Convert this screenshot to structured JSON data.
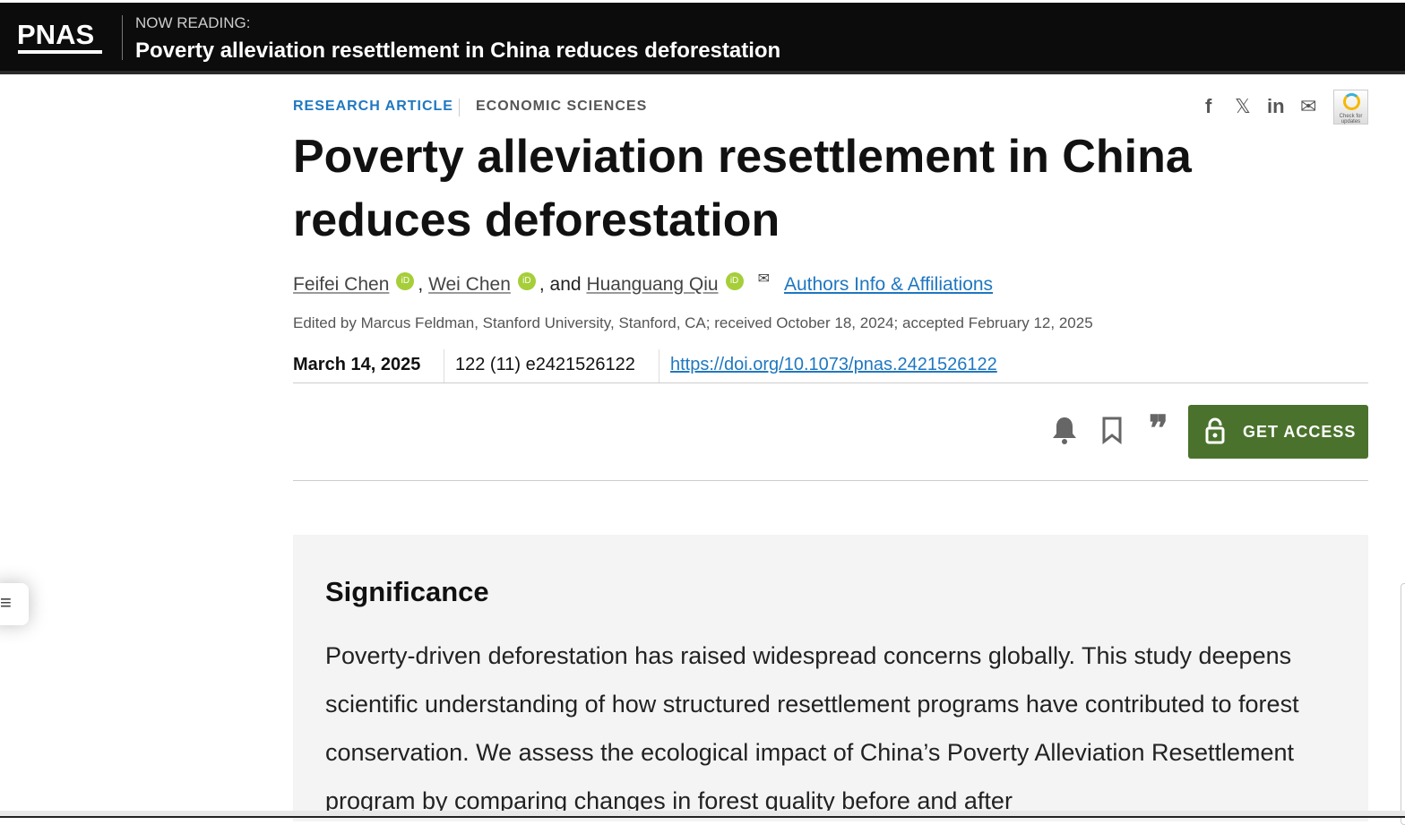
{
  "header": {
    "logo": "PNAS",
    "now_reading_label": "NOW READING:",
    "now_reading_title": "Poverty alleviation resettlement in China reduces deforestation"
  },
  "article": {
    "type": "RESEARCH ARTICLE",
    "section": "ECONOMIC SCIENCES",
    "title": "Poverty alleviation resettlement in China reduces deforestation",
    "authors": [
      "Feifei Chen",
      "Wei Chen",
      "Huanguang Qiu"
    ],
    "author_sep1": ", ",
    "author_sep2": ", and ",
    "orcid_label": "iD",
    "affiliations_link": "Authors Info & Affiliations",
    "edited": "Edited by Marcus Feldman, Stanford University, Stanford, CA; received October 18, 2024; accepted February 12, 2025",
    "date": "March 14, 2025",
    "volume": "122 (11) e2421526122",
    "doi": "https://doi.org/10.1073/pnas.2421526122"
  },
  "share": {
    "icons": [
      "facebook-icon",
      "x-icon",
      "linkedin-icon",
      "email-icon"
    ],
    "facebook": "f",
    "x": "𝕏",
    "linkedin": "in",
    "email": "✉",
    "check_updates": "Check for updates"
  },
  "actions": {
    "alert": "🔔",
    "bookmark": "🔖",
    "cite": "❞",
    "get_access": "GET ACCESS"
  },
  "menu_icon": "≡",
  "significance": {
    "heading": "Significance",
    "text": "Poverty-driven deforestation has raised widespread concerns globally. This study deepens scientific understanding of how structured resettlement programs have contributed to forest conservation. We assess the ecological impact of China’s Poverty Alleviation Resettlement program by comparing changes in forest quality before and after"
  },
  "colors": {
    "accent_blue": "#1f77c0",
    "access_green": "#4a722c",
    "orcid_green": "#a6ce39"
  }
}
